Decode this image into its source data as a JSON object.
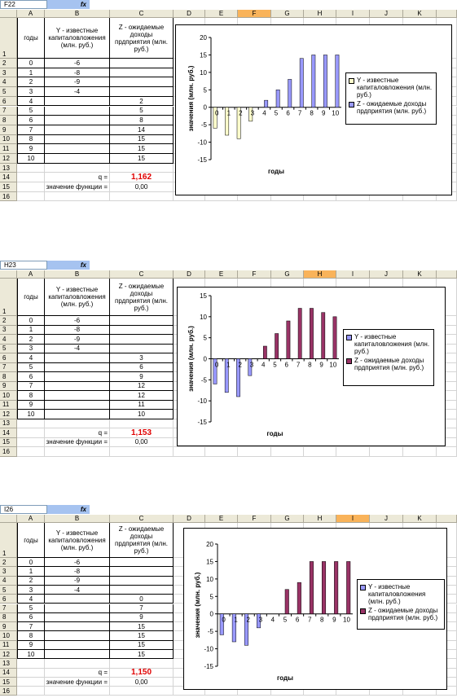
{
  "column_letters": [
    "A",
    "B",
    "C",
    "D",
    "E",
    "F",
    "G",
    "H",
    "I",
    "J",
    "K"
  ],
  "row_numbers": [
    1,
    2,
    3,
    4,
    5,
    6,
    7,
    8,
    9,
    10,
    11,
    12,
    13,
    14,
    15,
    16
  ],
  "formula_icon": "fx",
  "sheets": [
    {
      "name_box": "F22",
      "active_column": "F",
      "table_headers": [
        "годы",
        "Y - известные капиталовложения (млн. руб.)",
        "Z - ожидаемые доходы прдприятия (млн. руб.)"
      ],
      "q_label": "q =",
      "q_value": "1,162",
      "function_label": "значение функции =",
      "function_value": "0,00",
      "chart": {
        "type": "bar",
        "xlabel": "годы",
        "ylabel": "значения (млн. руб.)",
        "categories": [
          0,
          1,
          2,
          3,
          4,
          5,
          6,
          7,
          8,
          9,
          10
        ],
        "series": [
          {
            "name": "Y - известные капиталовложения (млн. руб.)",
            "color": "#ffffcc",
            "values": [
              -6,
              -8,
              -9,
              -4,
              null,
              null,
              null,
              null,
              null,
              null,
              null
            ]
          },
          {
            "name": "Z - ожидаемые доходы прдприятия (млн. руб.)",
            "color": "#9999ff",
            "values": [
              null,
              null,
              null,
              null,
              2,
              5,
              8,
              14,
              15,
              15,
              15
            ]
          }
        ],
        "ylim": [
          -15,
          20
        ],
        "yticks": [
          -15,
          -10,
          -5,
          0,
          5,
          10,
          15,
          20
        ]
      }
    },
    {
      "name_box": "H23",
      "active_column": "H",
      "table_headers": [
        "годы",
        "Y - известные капиталовложения (млн. руб.)",
        "Z - ожидаемые доходы прдприятия (млн. руб.)"
      ],
      "q_label": "q =",
      "q_value": "1,153",
      "function_label": "значение функции =",
      "function_value": "0,00",
      "chart": {
        "type": "bar",
        "xlabel": "годы",
        "ylabel": "значения (млн. руб.)",
        "categories": [
          0,
          1,
          2,
          3,
          4,
          5,
          6,
          7,
          8,
          9,
          10
        ],
        "series": [
          {
            "name": "Y - известные капиталовложения (млн. руб.)",
            "color": "#9999ff",
            "values": [
              -6,
              -8,
              -9,
              -4,
              null,
              null,
              null,
              null,
              null,
              null,
              null
            ]
          },
          {
            "name": "Z - ожидаемые доходы прдприятия (млн. руб.)",
            "color": "#993366",
            "values": [
              null,
              null,
              null,
              null,
              3,
              6,
              9,
              12,
              12,
              11,
              10
            ]
          }
        ],
        "ylim": [
          -15,
          15
        ],
        "yticks": [
          -15,
          -10,
          -5,
          0,
          5,
          10,
          15
        ]
      }
    },
    {
      "name_box": "I26",
      "active_column": "I",
      "table_headers": [
        "годы",
        "Y - известные капиталовложения (млн. руб.)",
        "Z - ожидаемые доходы прдприятия (млн. руб.)"
      ],
      "q_label": "q =",
      "q_value": "1,150",
      "function_label": "значение функции =",
      "function_value": "0,00",
      "chart": {
        "type": "bar",
        "xlabel": "годы",
        "ylabel": "значения (млн. руб.)",
        "categories": [
          0,
          1,
          2,
          3,
          4,
          5,
          6,
          7,
          8,
          9,
          10
        ],
        "series": [
          {
            "name": "Y - известные капиталовложения (млн. руб.)",
            "color": "#9999ff",
            "values": [
              -6,
              -8,
              -9,
              -4,
              null,
              null,
              null,
              null,
              null,
              null,
              null
            ]
          },
          {
            "name": "Z - ожидаемые доходы прдприятия (млн. руб.)",
            "color": "#993366",
            "values": [
              null,
              null,
              null,
              null,
              0,
              7,
              9,
              15,
              15,
              15,
              15
            ]
          }
        ],
        "ylim": [
          -15,
          20
        ],
        "yticks": [
          -15,
          -10,
          -5,
          0,
          5,
          10,
          15,
          20
        ]
      }
    }
  ]
}
